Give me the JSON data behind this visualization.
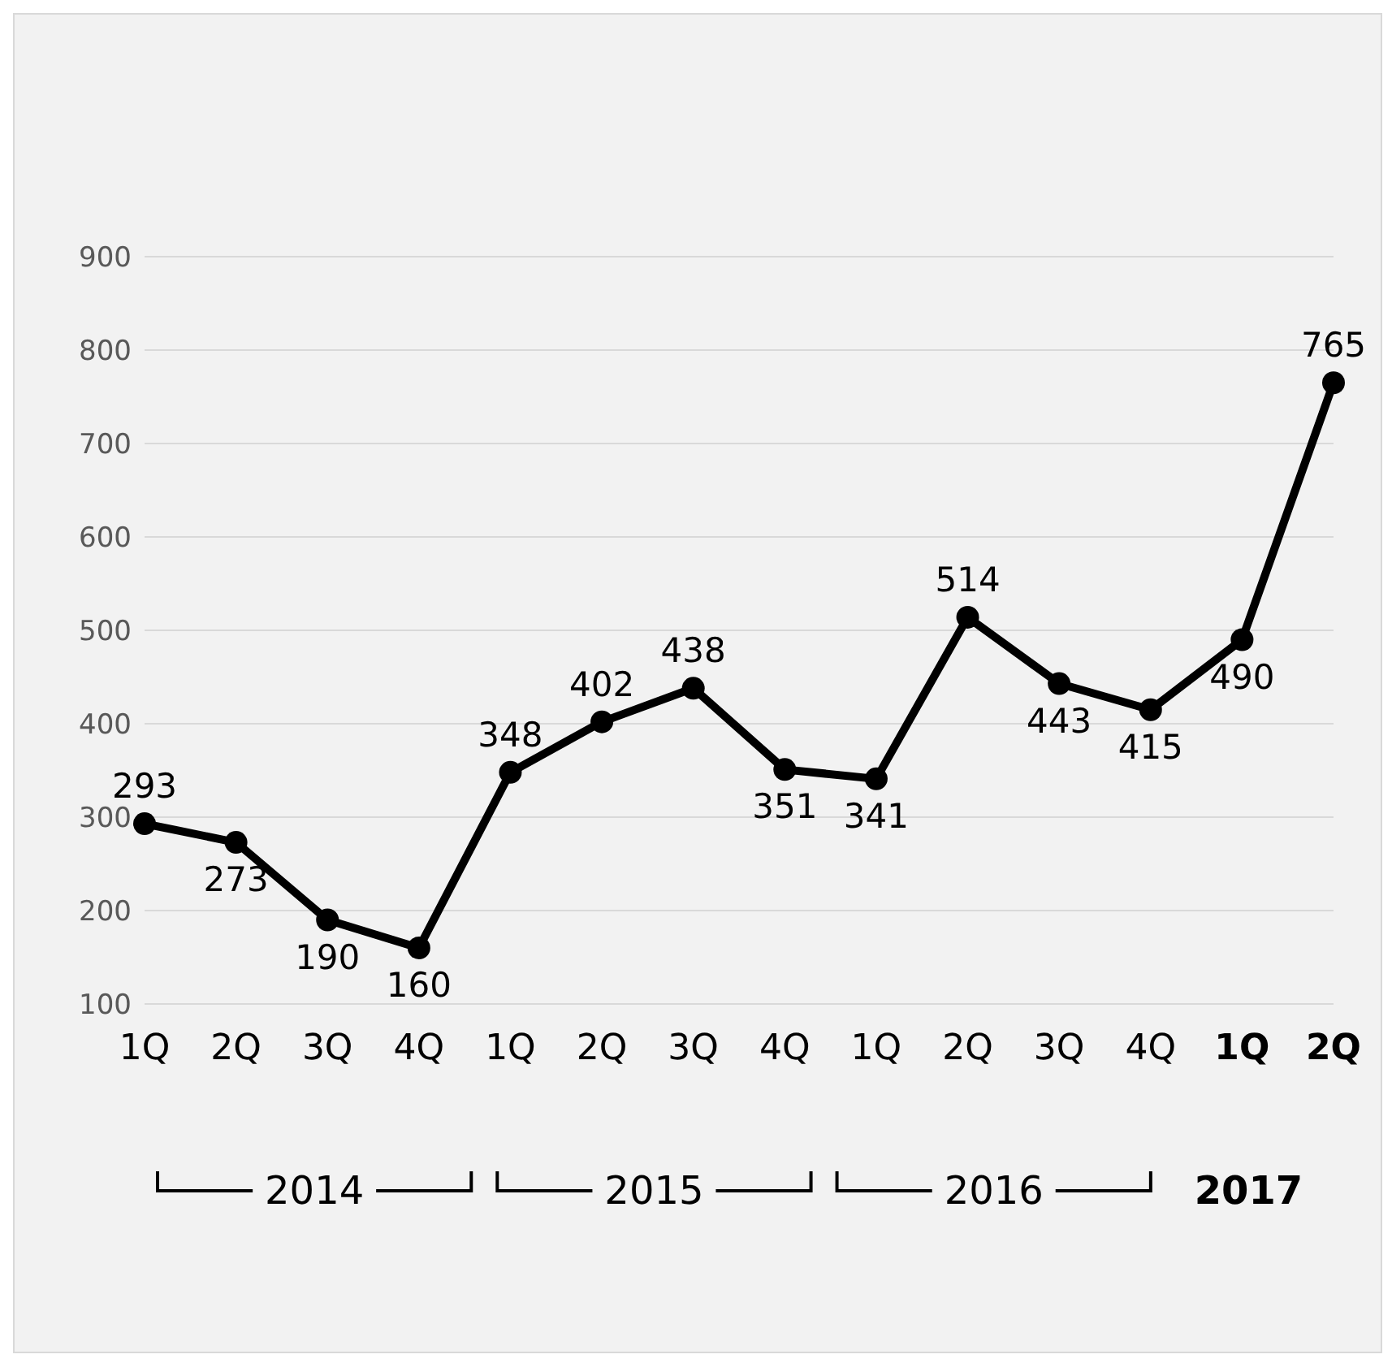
{
  "chart_data": {
    "type": "line",
    "categories": [
      "1Q",
      "2Q",
      "3Q",
      "4Q",
      "1Q",
      "2Q",
      "3Q",
      "4Q",
      "1Q",
      "2Q",
      "3Q",
      "4Q",
      "1Q",
      "2Q"
    ],
    "values": [
      293,
      273,
      190,
      160,
      348,
      402,
      438,
      351,
      341,
      514,
      443,
      415,
      490,
      765
    ],
    "color": "#000000",
    "ylim": [
      100,
      900
    ],
    "yticks": [
      100,
      200,
      300,
      400,
      500,
      600,
      700,
      800,
      900
    ],
    "grid": "y",
    "marker": "circle",
    "line_style": "solid",
    "data_labels": true,
    "annotations": [
      "2014",
      "2015",
      "2016",
      "2017"
    ]
  }
}
